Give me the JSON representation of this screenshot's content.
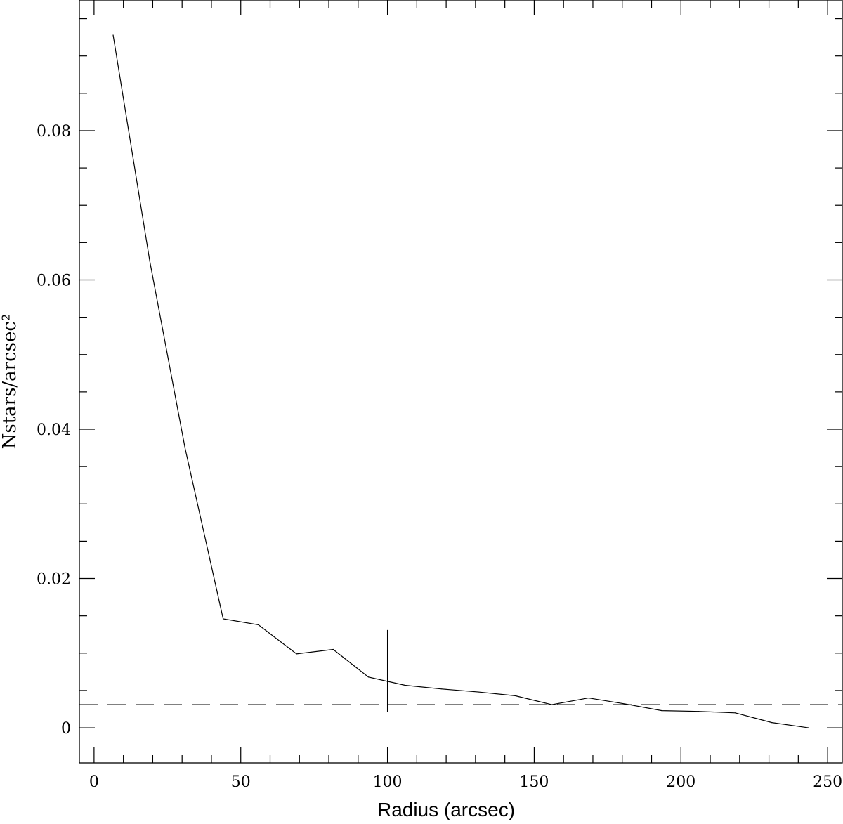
{
  "chart_data": {
    "type": "line",
    "title": "",
    "xlabel": "Radius (arcsec)",
    "ylabel": "Nstars/arcsec²",
    "xlim": [
      -5,
      255
    ],
    "ylim": [
      -0.0047,
      0.0975
    ],
    "x_ticks": [
      0,
      50,
      100,
      150,
      200,
      250
    ],
    "x_tick_labels": [
      "0",
      "50",
      "100",
      "150",
      "200",
      "250"
    ],
    "y_ticks": [
      0,
      0.02,
      0.04,
      0.06,
      0.08
    ],
    "y_tick_labels": [
      "0",
      "0.02",
      "0.04",
      "0.06",
      "0.08"
    ],
    "grid": false,
    "series": [
      {
        "x": [
          6.5,
          19,
          31,
          44,
          56,
          69,
          81.5,
          93.5,
          106,
          118.5,
          131,
          143.5,
          156,
          168.5,
          181,
          193.5,
          206,
          218.5,
          231,
          243.5
        ],
        "y": [
          0.0928,
          0.0625,
          0.0375,
          0.0146,
          0.0138,
          0.0099,
          0.0105,
          0.0068,
          0.0057,
          0.0052,
          0.0048,
          0.0043,
          0.0031,
          0.004,
          0.0032,
          0.0023,
          0.0022,
          0.002,
          0.0007,
          0
        ]
      }
    ],
    "background_level": 0.0031,
    "marker_x": 100,
    "marker_y_range": [
      0.0021,
      0.0131
    ]
  }
}
